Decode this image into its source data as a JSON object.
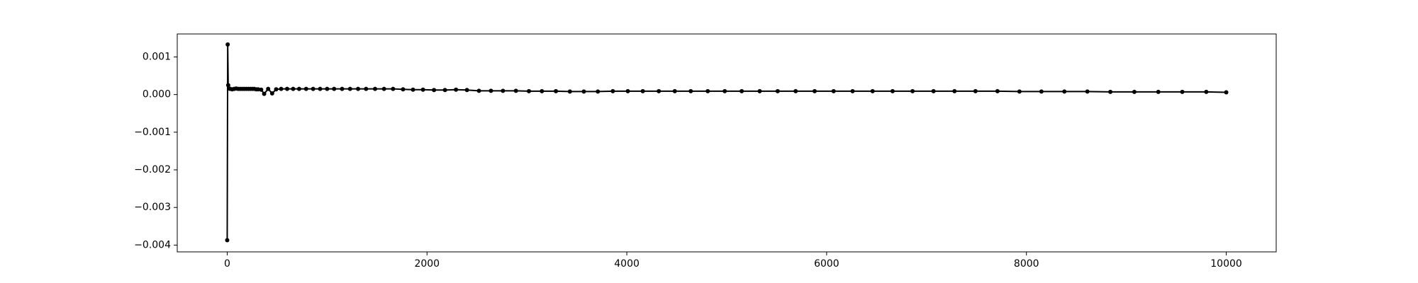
{
  "chart_data": {
    "type": "line",
    "color": "#000000",
    "marker": true,
    "x": [
      0,
      5,
      10,
      20,
      30,
      50,
      70,
      90,
      110,
      130,
      150,
      170,
      190,
      210,
      230,
      250,
      270,
      290,
      310,
      340,
      370,
      410,
      450,
      490,
      540,
      600,
      660,
      720,
      790,
      860,
      930,
      1000,
      1070,
      1150,
      1230,
      1310,
      1390,
      1480,
      1570,
      1660,
      1760,
      1860,
      1960,
      2070,
      2180,
      2290,
      2400,
      2520,
      2640,
      2760,
      2890,
      3020,
      3150,
      3290,
      3430,
      3570,
      3710,
      3860,
      4010,
      4160,
      4320,
      4480,
      4640,
      4810,
      4980,
      5150,
      5330,
      5510,
      5690,
      5880,
      6070,
      6260,
      6460,
      6660,
      6860,
      7070,
      7280,
      7490,
      7710,
      7930,
      8150,
      8380,
      8610,
      8840,
      9080,
      9320,
      9560,
      9800,
      10000
    ],
    "values": [
      -0.00387,
      0.00133,
      0.00025,
      0.00016,
      0.00015,
      0.00014,
      0.00015,
      0.00016,
      0.00015,
      0.00015,
      0.00015,
      0.00015,
      0.00015,
      0.00015,
      0.00015,
      0.00015,
      0.00015,
      0.00014,
      0.00014,
      0.00013,
      2e-05,
      0.00015,
      3e-05,
      0.00014,
      0.00015,
      0.00015,
      0.00015,
      0.00015,
      0.00015,
      0.00015,
      0.00015,
      0.00015,
      0.00015,
      0.00015,
      0.00015,
      0.00015,
      0.00015,
      0.00015,
      0.00015,
      0.00015,
      0.00014,
      0.00013,
      0.00013,
      0.00012,
      0.00012,
      0.00013,
      0.00012,
      0.0001,
      0.0001,
      0.0001,
      0.0001,
      9e-05,
      9e-05,
      9e-05,
      8e-05,
      8e-05,
      8e-05,
      9e-05,
      9e-05,
      9e-05,
      9e-05,
      9e-05,
      9e-05,
      9e-05,
      9e-05,
      9e-05,
      9e-05,
      9e-05,
      9e-05,
      9e-05,
      9e-05,
      9e-05,
      9e-05,
      9e-05,
      9e-05,
      9e-05,
      9e-05,
      9e-05,
      9e-05,
      8e-05,
      8e-05,
      8e-05,
      8e-05,
      7e-05,
      7e-05,
      7e-05,
      7e-05,
      7e-05,
      6e-05
    ],
    "xlim": [
      -500,
      10500
    ],
    "xticks": [
      0,
      2000,
      4000,
      6000,
      8000,
      10000
    ],
    "ylim": [
      -0.00418,
      0.00161
    ],
    "yticks": [
      {
        "value": -0.004,
        "label": "−0.004"
      },
      {
        "value": -0.003,
        "label": "−0.003"
      },
      {
        "value": -0.002,
        "label": "−0.002"
      },
      {
        "value": -0.001,
        "label": "−0.001"
      },
      {
        "value": 0,
        "label": "0.000"
      },
      {
        "value": 0.001,
        "label": "0.001"
      }
    ]
  }
}
